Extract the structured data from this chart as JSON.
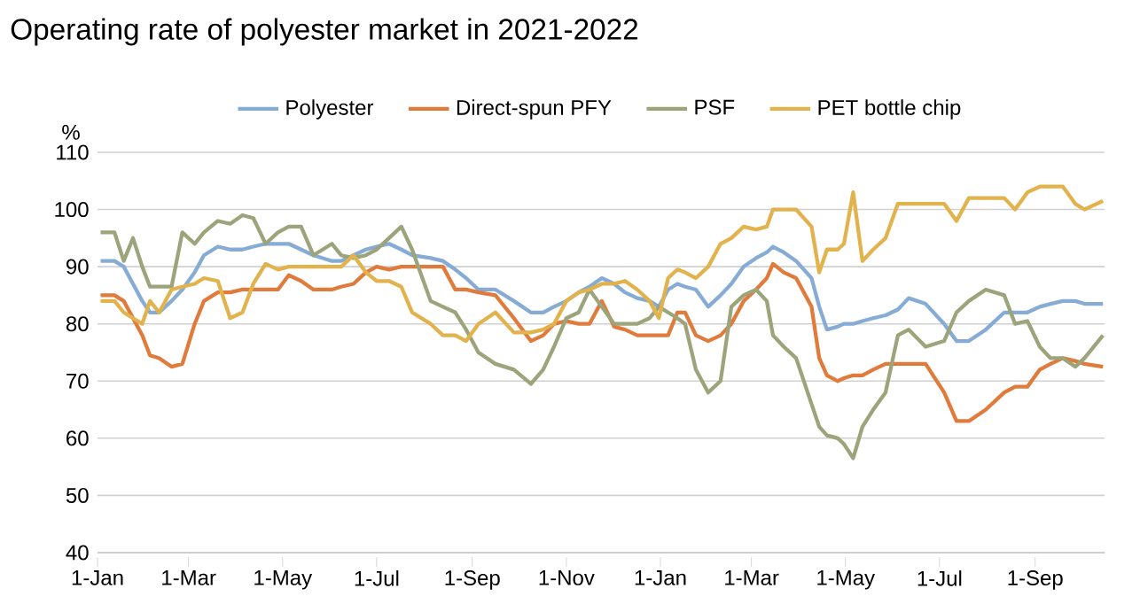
{
  "chart_data": {
    "type": "line",
    "title": "Operating rate of polyester market in 2021-2022",
    "ylabel": "%",
    "x": [
      "2021-01-03",
      "2021-01-12",
      "2021-01-18",
      "2021-01-24",
      "2021-01-30",
      "2021-02-04",
      "2021-02-10",
      "2021-02-18",
      "2021-02-25",
      "2021-03-05",
      "2021-03-11",
      "2021-03-20",
      "2021-03-28",
      "2021-04-05",
      "2021-04-12",
      "2021-04-20",
      "2021-04-28",
      "2021-05-05",
      "2021-05-13",
      "2021-05-21",
      "2021-06-02",
      "2021-06-08",
      "2021-06-16",
      "2021-06-24",
      "2021-07-01",
      "2021-07-09",
      "2021-07-17",
      "2021-07-24",
      "2021-08-05",
      "2021-08-13",
      "2021-08-21",
      "2021-08-28",
      "2021-09-05",
      "2021-09-16",
      "2021-09-28",
      "2021-10-09",
      "2021-10-17",
      "2021-10-24",
      "2021-11-01",
      "2021-11-09",
      "2021-11-16",
      "2021-11-24",
      "2021-12-02",
      "2021-12-09",
      "2021-12-17",
      "2021-12-25",
      "2021-12-31",
      "2022-01-06",
      "2022-01-12",
      "2022-01-17",
      "2022-01-24",
      "2022-02-01",
      "2022-02-09",
      "2022-02-16",
      "2022-02-24",
      "2022-03-04",
      "2022-03-11",
      "2022-03-15",
      "2022-03-22",
      "2022-03-30",
      "2022-04-09",
      "2022-04-14",
      "2022-04-19",
      "2022-04-26",
      "2022-04-30",
      "2022-05-06",
      "2022-05-12",
      "2022-05-19",
      "2022-05-27",
      "2022-06-04",
      "2022-06-11",
      "2022-06-22",
      "2022-07-04",
      "2022-07-12",
      "2022-07-20",
      "2022-07-31",
      "2022-08-12",
      "2022-08-19",
      "2022-08-27",
      "2022-09-04",
      "2022-09-11",
      "2022-09-19",
      "2022-09-27",
      "2022-10-03",
      "2022-10-15"
    ],
    "series": [
      {
        "name": "Polyester",
        "color": "#86acd6",
        "values": [
          91,
          91,
          90,
          87,
          84,
          82,
          82,
          84,
          86,
          89,
          92,
          93.5,
          93,
          93,
          93.5,
          94,
          94,
          94,
          93,
          92,
          91,
          91,
          92,
          93,
          93.5,
          94,
          93,
          92,
          91.5,
          91,
          89.5,
          88,
          86,
          86,
          84,
          82,
          82,
          83,
          84,
          85.5,
          86.5,
          88,
          87,
          85.5,
          84.5,
          84,
          83,
          86,
          87,
          86.5,
          86,
          83,
          85,
          87,
          90,
          91.5,
          92.5,
          93.5,
          92.5,
          91,
          88,
          83,
          79,
          79.5,
          80,
          80,
          80.5,
          81,
          81.5,
          82.5,
          84.5,
          83.5,
          80,
          77,
          77,
          79,
          82,
          82,
          82,
          83,
          83.5,
          84,
          84,
          83.5,
          83.5
        ]
      },
      {
        "name": "Direct-spun PFY",
        "color": "#e07b3c",
        "values": [
          85,
          85,
          84,
          81,
          78,
          74.5,
          74,
          72.5,
          73,
          80,
          84,
          85.5,
          85.5,
          86,
          86,
          86,
          86,
          88.5,
          87.5,
          86,
          86,
          86.5,
          87,
          89,
          90,
          89.5,
          90,
          90,
          90,
          90,
          86,
          86,
          85.5,
          85,
          81,
          77,
          78,
          80,
          80.5,
          80,
          80,
          84,
          79.5,
          79,
          78,
          78,
          78,
          78,
          82,
          82,
          78,
          77,
          78,
          80,
          84,
          86,
          88,
          90.5,
          89,
          88,
          83,
          74,
          71,
          70,
          70.5,
          71,
          71,
          72,
          73,
          73,
          73,
          73,
          68,
          63,
          63,
          65,
          68,
          69,
          69,
          72,
          73,
          74,
          73.5,
          73,
          72.5
        ]
      },
      {
        "name": "PSF",
        "color": "#9ba47a",
        "values": [
          96,
          96,
          91,
          95,
          90,
          86.5,
          86.5,
          86.5,
          96,
          94,
          96,
          98,
          97.5,
          99,
          98.5,
          94,
          96,
          97,
          97,
          92,
          94,
          92,
          91.5,
          92,
          93,
          95,
          97,
          93,
          84,
          83,
          82,
          79,
          75,
          73,
          72,
          69.5,
          72,
          76,
          81,
          82,
          86,
          83,
          80,
          80,
          80,
          81,
          83,
          82,
          81,
          80,
          72,
          68,
          70,
          83,
          85,
          86,
          84,
          78,
          76,
          74,
          66,
          62,
          60.5,
          60,
          59,
          56.5,
          62,
          65,
          68,
          78,
          79,
          76,
          77,
          82,
          84,
          86,
          85,
          80,
          80.5,
          76,
          74,
          74,
          72.5,
          74,
          78
        ]
      },
      {
        "name": "PET bottle chip",
        "color": "#e2b24c",
        "values": [
          84,
          84,
          82,
          81,
          80,
          84,
          82,
          86,
          86.5,
          87,
          88,
          87.5,
          81,
          82,
          87,
          90.5,
          89.5,
          90,
          90,
          90,
          90,
          90,
          92,
          89,
          87.5,
          87.5,
          86.5,
          82,
          80,
          78,
          78,
          77,
          80,
          82,
          78.5,
          78.5,
          79,
          80,
          84,
          85.5,
          86,
          87,
          87,
          87.5,
          86,
          84,
          81,
          88,
          89.5,
          89,
          88,
          90,
          94,
          95,
          97,
          96.5,
          97,
          100,
          100,
          100,
          97,
          89,
          93,
          93,
          94,
          103,
          91,
          93,
          95,
          101,
          101,
          101,
          101,
          98,
          102,
          102,
          102,
          100,
          103,
          104,
          104,
          104,
          101,
          100,
          101.5
        ]
      }
    ],
    "xlim": [
      "2021-01-01",
      "2022-10-16"
    ],
    "ylim": [
      40,
      110
    ],
    "yticks": [
      40,
      50,
      60,
      70,
      80,
      90,
      100,
      110
    ],
    "xticks": [
      {
        "value": "2021-01-01",
        "label": "1-Jan"
      },
      {
        "value": "2021-03-01",
        "label": "1-Mar"
      },
      {
        "value": "2021-05-01",
        "label": "1-May"
      },
      {
        "value": "2021-07-01",
        "label": "1-Jul"
      },
      {
        "value": "2021-09-01",
        "label": "1-Sep"
      },
      {
        "value": "2021-11-01",
        "label": "1-Nov"
      },
      {
        "value": "2022-01-01",
        "label": "1-Jan"
      },
      {
        "value": "2022-03-01",
        "label": "1-Mar"
      },
      {
        "value": "2022-05-01",
        "label": "1-May"
      },
      {
        "value": "2022-07-01",
        "label": "1-Jul"
      },
      {
        "value": "2022-09-01",
        "label": "1-Sep"
      }
    ],
    "grid": "y",
    "legend": "top"
  }
}
